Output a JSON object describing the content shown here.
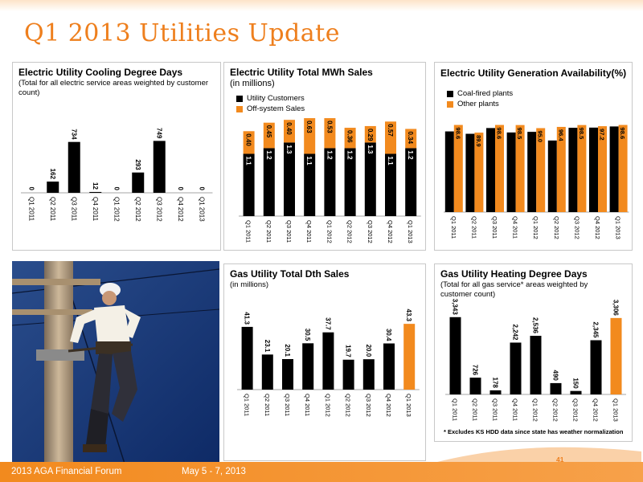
{
  "page": {
    "title": "Q1 2013 Utilities Update",
    "footer_left": "2013 AGA Financial Forum",
    "footer_date": "May 5 - 7, 2013",
    "page_number": "41",
    "footnote": "* Excludes KS HDD data since state has weather normalization",
    "accent_color": "#ee7f1d"
  },
  "charts": {
    "cdd": {
      "title": "Electric Utility Cooling Degree Days",
      "subtitle": "(Total for all electric service areas weighted by customer count)"
    },
    "mwh": {
      "title": "Electric Utility Total MWh Sales",
      "subtitle": "(in millions)",
      "legend": [
        "Utility Customers",
        "Off-system Sales"
      ]
    },
    "gen": {
      "title": "Electric Utility Generation Availability(%)",
      "legend": [
        "Coal-fired plants",
        "Other plants"
      ]
    },
    "dth": {
      "title": "Gas Utility Total Dth Sales",
      "subtitle": "(in millions)"
    },
    "hdd": {
      "title": "Gas Utility Heating Degree Days",
      "subtitle": "(Total for all gas service* areas weighted by customer count)"
    }
  },
  "chart_data": [
    {
      "id": "cdd",
      "type": "bar",
      "title": "Electric Utility Cooling Degree Days",
      "categories": [
        "Q1 2011",
        "Q2 2011",
        "Q3 2011",
        "Q4 2011",
        "Q1 2012",
        "Q2 2012",
        "Q3 2012",
        "Q4 2012",
        "Q1 2013"
      ],
      "series": [
        {
          "values": [
            0,
            162,
            734,
            12,
            0,
            293,
            749,
            0,
            0
          ],
          "labels": [
            "0",
            "162",
            "734",
            "12",
            "0",
            "293",
            "749",
            "0",
            "0"
          ],
          "color": "#000000"
        }
      ],
      "ylim": [
        0,
        800
      ]
    },
    {
      "id": "mwh",
      "type": "bar",
      "stacked": true,
      "title": "Electric Utility Total MWh Sales",
      "categories": [
        "Q1 2011",
        "Q2 2011",
        "Q3 2011",
        "Q4 2011",
        "Q1 2012",
        "Q2 2012",
        "Q3 2012",
        "Q4 2012",
        "Q1 2013"
      ],
      "series": [
        {
          "name": "Utility Customers",
          "values": [
            1.1,
            1.2,
            1.3,
            1.1,
            1.2,
            1.2,
            1.3,
            1.1,
            1.2
          ],
          "labels": [
            "1.1",
            "1.2",
            "1.3",
            "1.1",
            "1.2",
            "1.2",
            "1.3",
            "1.1",
            "1.2"
          ],
          "color": "#000000"
        },
        {
          "name": "Off-system Sales",
          "values": [
            0.4,
            0.45,
            0.4,
            0.63,
            0.53,
            0.36,
            0.29,
            0.57,
            0.34
          ],
          "labels": [
            "0.40",
            "0.45",
            "0.40",
            "0.63",
            "0.53",
            "0.36",
            "0.29",
            "0.57",
            "0.34"
          ],
          "color": "#f28a1e"
        }
      ],
      "ylim": [
        0,
        2.1
      ]
    },
    {
      "id": "gen",
      "type": "bar",
      "title": "Electric Utility Generation Availability(%)",
      "categories": [
        "Q1 2011",
        "Q2 2011",
        "Q3 2011",
        "Q4 2011",
        "Q1 2012",
        "Q2 2012",
        "Q3 2012",
        "Q4 2012",
        "Q1 2013"
      ],
      "series": [
        {
          "name": "Coal-fired plants",
          "values": [
            91.3,
            88.6,
            95.1,
            90.1,
            90.8,
            81.0,
            95.4,
            95.6,
            96.9
          ],
          "labels": [
            "91.3",
            "88.6",
            "95.1",
            "90.1",
            "90.8",
            "81.0",
            "95.4",
            "95.6",
            "96.9"
          ],
          "color": "#000000"
        },
        {
          "name": "Other plants",
          "values": [
            98.6,
            89.9,
            98.6,
            98.5,
            95.0,
            96.4,
            98.5,
            97.2,
            98.6
          ],
          "labels": [
            "98.6",
            "89.9",
            "98.6",
            "98.5",
            "95.0",
            "96.4",
            "98.5",
            "97.2",
            "98.6"
          ],
          "color": "#f28a1e"
        }
      ],
      "ylim": [
        0,
        130
      ]
    },
    {
      "id": "dth",
      "type": "bar",
      "title": "Gas Utility Total Dth Sales",
      "categories": [
        "Q1 2011",
        "Q2 2011",
        "Q3 2011",
        "Q4 2011",
        "Q1 2012",
        "Q2 2012",
        "Q3 2012",
        "Q4 2012",
        "Q1 2013"
      ],
      "series": [
        {
          "values": [
            41.3,
            23.1,
            20.1,
            30.5,
            37.7,
            19.7,
            20.0,
            30.4,
            43.3
          ],
          "labels": [
            "41.3",
            "23.1",
            "20.1",
            "30.5",
            "37.7",
            "19.7",
            "20.0",
            "30.4",
            "43.3"
          ],
          "colors": [
            "#000000",
            "#000000",
            "#000000",
            "#000000",
            "#000000",
            "#000000",
            "#000000",
            "#000000",
            "#f28a1e"
          ]
        }
      ],
      "ylim": [
        0,
        55
      ]
    },
    {
      "id": "hdd",
      "type": "bar",
      "title": "Gas Utility Heating Degree Days",
      "categories": [
        "Q1 2011",
        "Q2 2011",
        "Q3 2011",
        "Q4 2011",
        "Q1 2012",
        "Q2 2012",
        "Q3 2012",
        "Q4 2012",
        "Q1 2013"
      ],
      "series": [
        {
          "values": [
            3343,
            726,
            178,
            2242,
            2536,
            490,
            150,
            2345,
            3306
          ],
          "labels": [
            "3,343",
            "726",
            "178",
            "2,242",
            "2,536",
            "490",
            "150",
            "2,345",
            "3,306"
          ],
          "colors": [
            "#000000",
            "#000000",
            "#000000",
            "#000000",
            "#000000",
            "#000000",
            "#000000",
            "#000000",
            "#f28a1e"
          ]
        }
      ],
      "ylim": [
        0,
        4100
      ]
    }
  ]
}
